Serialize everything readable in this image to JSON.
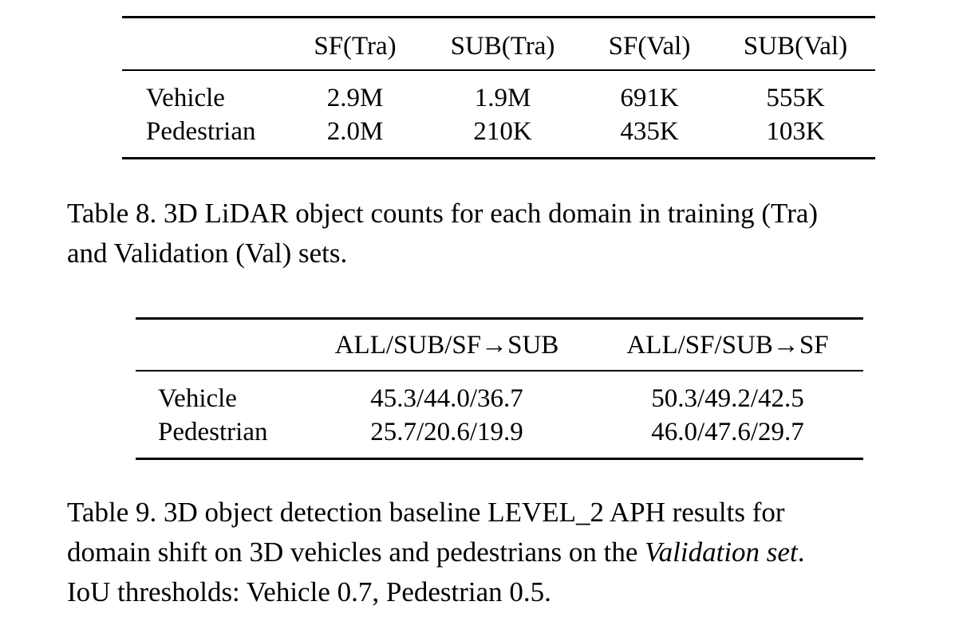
{
  "table8": {
    "headers": [
      "SF(Tra)",
      "SUB(Tra)",
      "SF(Val)",
      "SUB(Val)"
    ],
    "rows": [
      {
        "label": "Vehicle",
        "values": [
          "2.9M",
          "1.9M",
          "691K",
          "555K"
        ]
      },
      {
        "label": "Pedestrian",
        "values": [
          "2.0M",
          "210K",
          "435K",
          "103K"
        ]
      }
    ],
    "caption_line1": "Table 8. 3D LiDAR object counts for each domain in training (Tra)",
    "caption_line2": "and Validation (Val) sets."
  },
  "table9": {
    "headers": [
      "ALL/SUB/SF→SUB",
      "ALL/SF/SUB→SF"
    ],
    "rows": [
      {
        "label": "Vehicle",
        "values": [
          "45.3/44.0/36.7",
          "50.3/49.2/42.5"
        ]
      },
      {
        "label": "Pedestrian",
        "values": [
          "25.7/20.6/19.9",
          "46.0/47.6/29.7"
        ]
      }
    ],
    "caption_line1": "Table 9. 3D object detection baseline LEVEL_2 APH results for",
    "caption_line2_prefix": "domain shift on 3D vehicles and pedestrians on the ",
    "caption_line2_italic": "Validation set",
    "caption_line2_suffix": ".",
    "caption_line3": "IoU thresholds: Vehicle 0.7, Pedestrian 0.5."
  }
}
